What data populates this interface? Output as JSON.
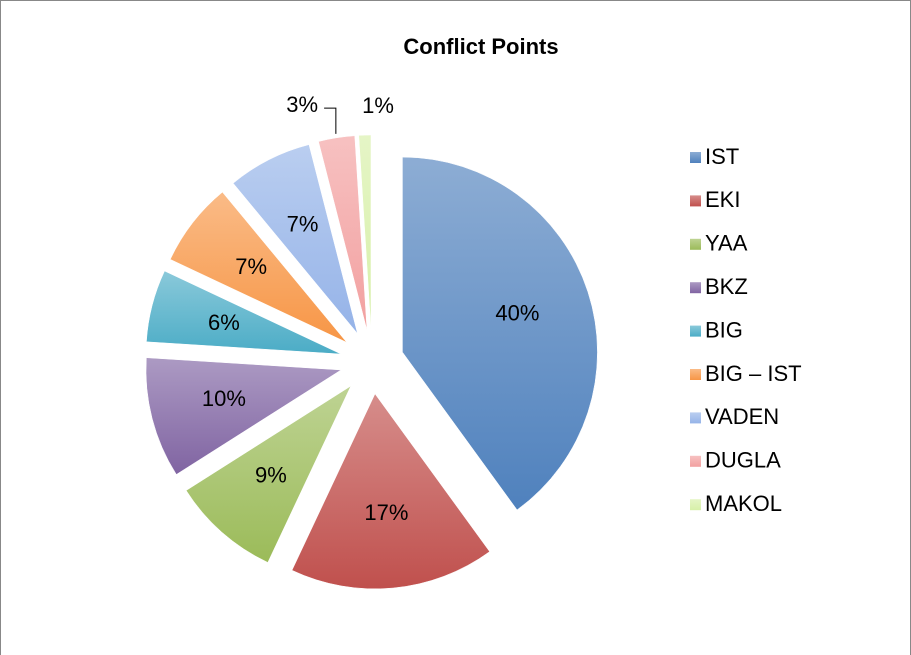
{
  "chart_data": {
    "type": "pie",
    "title": "Conflict Points",
    "categories": [
      "IST",
      "EKI",
      "YAA",
      "BKZ",
      "BIG",
      "BIG – IST",
      "VADEN",
      "DUGLA",
      "MAKOL"
    ],
    "values": [
      40,
      17,
      9,
      10,
      6,
      7,
      7,
      3,
      1
    ],
    "value_labels": [
      "40%",
      "17%",
      "9%",
      "10%",
      "6%",
      "7%",
      "7%",
      "3%",
      "1%"
    ],
    "colors": [
      "#4f81bd",
      "#c0504d",
      "#9bbb59",
      "#8064a2",
      "#4bacc6",
      "#f79646",
      "#95b3e8",
      "#f2a0a0",
      "#d7f0a8"
    ],
    "legend": "right"
  }
}
